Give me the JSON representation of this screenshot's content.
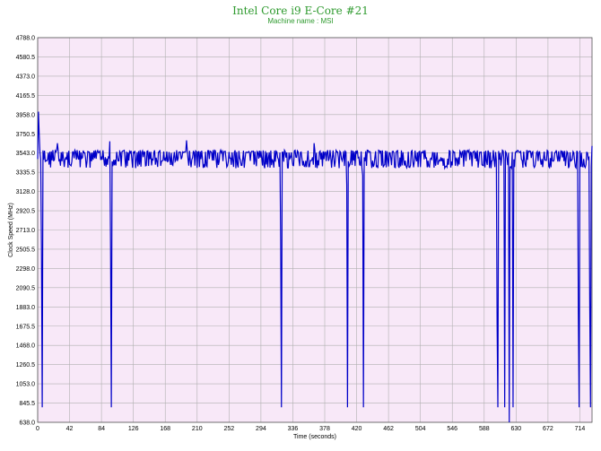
{
  "chart_data": {
    "type": "line",
    "title": "Intel Core i9 E-Core #21",
    "subtitle": "Machine name : MSI",
    "xlabel": "Time (seconds)",
    "ylabel": "Clock Speed (MHz)",
    "xlim": [
      0,
      730
    ],
    "ylim": [
      638.0,
      4788.0
    ],
    "x_ticks": [
      0,
      42,
      84,
      126,
      168,
      210,
      252,
      294,
      336,
      378,
      420,
      462,
      504,
      546,
      588,
      630,
      672,
      714
    ],
    "y_ticks": [
      638.0,
      845.5,
      1053.0,
      1260.5,
      1468.0,
      1675.5,
      1883.0,
      2090.5,
      2298.0,
      2505.5,
      2713.0,
      2920.5,
      3128.0,
      3335.5,
      3543.0,
      3750.5,
      3958.0,
      4165.5,
      4373.0,
      4580.5,
      4788.0
    ],
    "grid": true,
    "legend": "none",
    "colors": {
      "background": "#f8e8f8",
      "line": "#0000c8",
      "grid": "#b0b0b0",
      "title": "#2e9a2e"
    },
    "series": [
      {
        "baseline_mhz": 3475,
        "upper_level_mhz": 3560,
        "lower_level_mhz": 3400,
        "x_start": 0,
        "x_end": 730,
        "peaks": [
          {
            "x": 1,
            "y": 3990
          },
          {
            "x": 2,
            "y": 3750
          },
          {
            "x": 26,
            "y": 3650
          },
          {
            "x": 95,
            "y": 3670
          },
          {
            "x": 196,
            "y": 3680
          },
          {
            "x": 364,
            "y": 3650
          },
          {
            "x": 730,
            "y": 3620
          }
        ],
        "dips": [
          {
            "x": 5,
            "y": 2500
          },
          {
            "x": 6,
            "y": 800
          },
          {
            "x": 96,
            "y": 2500
          },
          {
            "x": 97,
            "y": 800
          },
          {
            "x": 320,
            "y": 2600
          },
          {
            "x": 321,
            "y": 800
          },
          {
            "x": 407,
            "y": 3200
          },
          {
            "x": 408,
            "y": 800
          },
          {
            "x": 428,
            "y": 3300
          },
          {
            "x": 429,
            "y": 800
          },
          {
            "x": 605,
            "y": 1700
          },
          {
            "x": 606,
            "y": 800
          },
          {
            "x": 615,
            "y": 800
          },
          {
            "x": 621,
            "y": 638
          },
          {
            "x": 626,
            "y": 800
          },
          {
            "x": 712,
            "y": 1800
          },
          {
            "x": 713,
            "y": 800
          },
          {
            "x": 727,
            "y": 1900
          },
          {
            "x": 728,
            "y": 800
          }
        ]
      }
    ]
  }
}
